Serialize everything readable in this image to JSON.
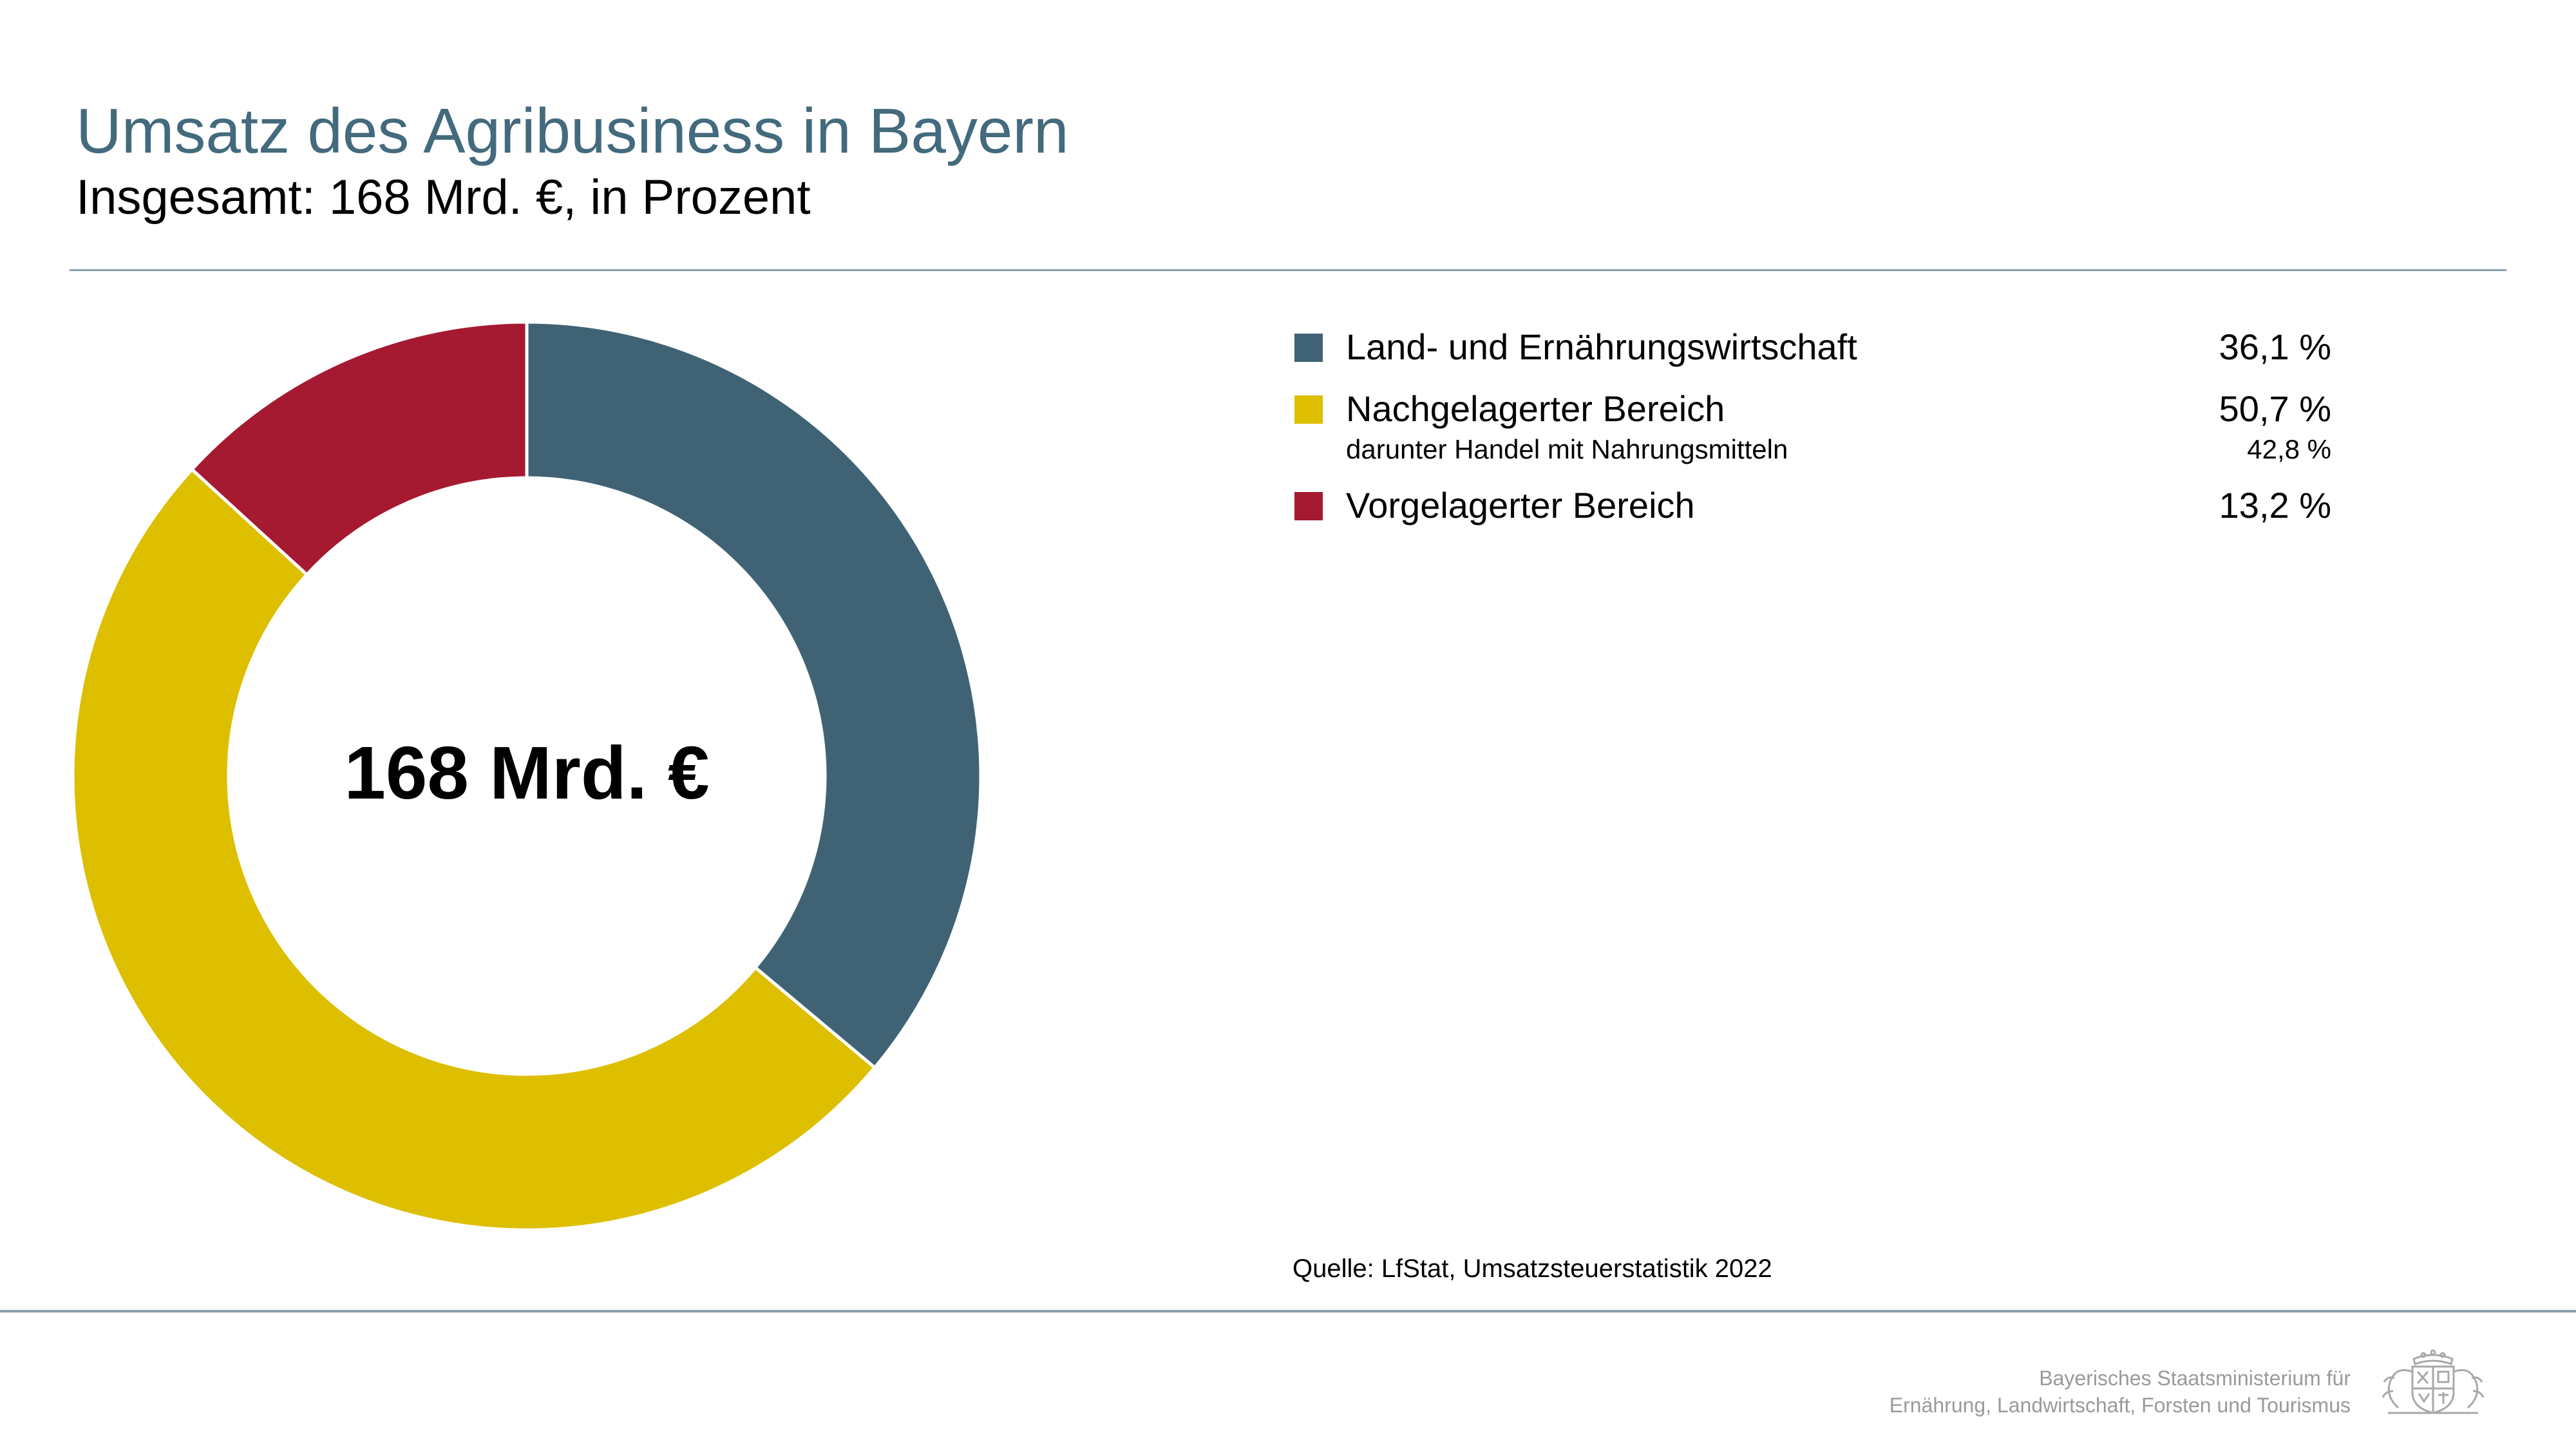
{
  "header": {
    "title": "Umsatz des Agribusiness in Bayern",
    "subtitle": "Insgesamt: 168 Mrd. €, in Prozent"
  },
  "chart_data": {
    "type": "pie",
    "title": "Umsatz des Agribusiness in Bayern",
    "subtitle": "Insgesamt: 168 Mrd. €, in Prozent",
    "center_label": "168 Mrd. €",
    "categories": [
      "Land- und Ernährungswirtschaft",
      "Nachgelagerter Bereich",
      "Vorgelagerter Bereich"
    ],
    "values": [
      36.1,
      50.7,
      13.2
    ],
    "value_labels": [
      "36,1 %",
      "50,7 %",
      "13,2 %"
    ],
    "colors": [
      "#3f6374",
      "#ddbf00",
      "#a51931"
    ],
    "sub_item": {
      "parent": "Nachgelagerter Bereich",
      "label": "darunter Handel mit Nahrungsmitteln",
      "value": 42.8,
      "value_label": "42,8 %"
    },
    "legend_position": "right"
  },
  "source": "Quelle: LfStat, Umsatzsteuerstatistik 2022",
  "footer": {
    "line1": "Bayerisches Staatsministerium für",
    "line2": "Ernährung, Landwirtschaft, Forsten und Tourismus",
    "logo_icon": "bavarian-coat-of-arms-icon"
  }
}
